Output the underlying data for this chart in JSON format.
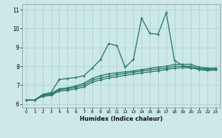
{
  "xlabel": "Humidex (Indice chaleur)",
  "background_color": "#cce8e8",
  "grid_color": "#aacccc",
  "line_color": "#2a7a6a",
  "xlim": [
    -0.5,
    23.5
  ],
  "ylim": [
    5.8,
    11.3
  ],
  "x_ticks": [
    0,
    1,
    2,
    3,
    4,
    5,
    6,
    7,
    8,
    9,
    10,
    11,
    12,
    13,
    14,
    15,
    16,
    17,
    18,
    19,
    20,
    21,
    22,
    23
  ],
  "y_ticks": [
    6,
    7,
    8,
    9,
    10,
    11
  ],
  "series": [
    [
      6.2,
      6.2,
      6.5,
      6.6,
      7.3,
      7.35,
      7.4,
      7.5,
      7.9,
      8.35,
      9.2,
      9.1,
      7.95,
      8.35,
      10.55,
      9.75,
      9.7,
      10.85,
      8.3,
      8.05,
      7.9,
      7.85,
      7.9,
      7.9
    ],
    [
      6.2,
      6.2,
      6.5,
      6.55,
      6.8,
      6.85,
      6.95,
      7.1,
      7.35,
      7.5,
      7.6,
      7.65,
      7.7,
      7.75,
      7.82,
      7.88,
      7.95,
      8.0,
      8.1,
      8.1,
      8.1,
      7.95,
      7.9,
      7.9
    ],
    [
      6.2,
      6.2,
      6.45,
      6.5,
      6.75,
      6.8,
      6.88,
      7.0,
      7.25,
      7.38,
      7.48,
      7.55,
      7.62,
      7.68,
      7.75,
      7.8,
      7.86,
      7.9,
      8.0,
      8.0,
      8.0,
      7.88,
      7.83,
      7.85
    ],
    [
      6.2,
      6.2,
      6.4,
      6.45,
      6.68,
      6.72,
      6.8,
      6.9,
      7.15,
      7.28,
      7.38,
      7.44,
      7.52,
      7.58,
      7.65,
      7.7,
      7.76,
      7.82,
      7.9,
      7.92,
      7.92,
      7.82,
      7.77,
      7.8
    ]
  ]
}
